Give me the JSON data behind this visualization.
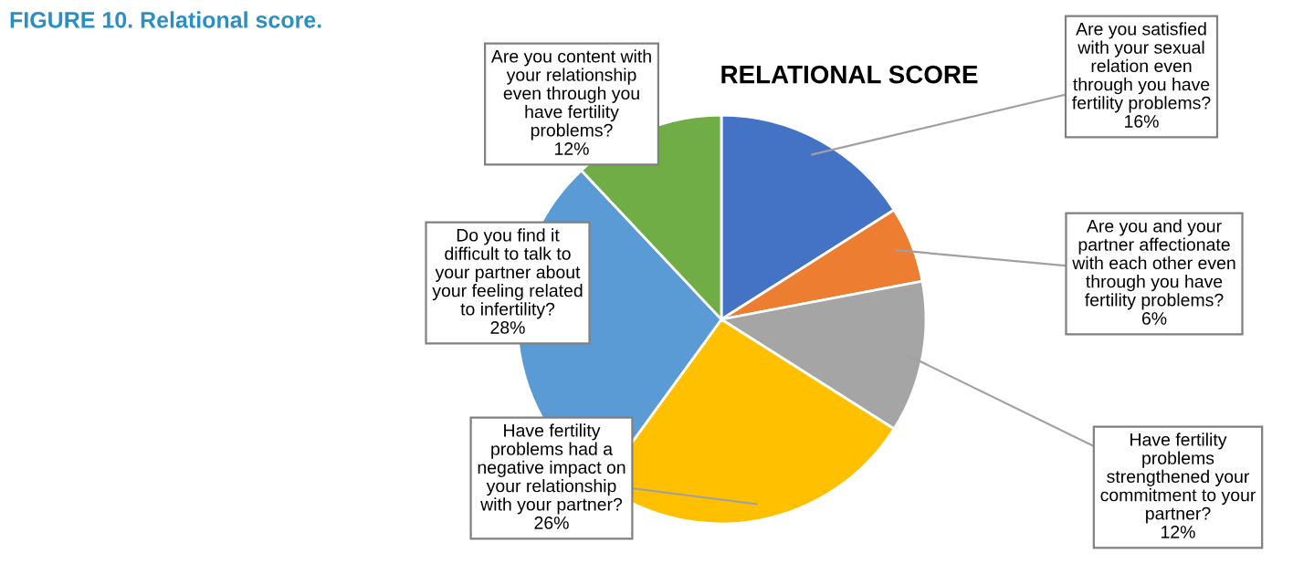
{
  "chart_data": {
    "type": "pie",
    "title": "RELATIONAL SCORE",
    "annotations": [
      "FIGURE 10. Relational score."
    ],
    "categories": [
      "Are you satisfied\nwith your sexual\nrelation even\nthrough you have\nfertility problems?",
      "Are you and your\npartner affectionate\nwith each other even\nthrough you have\nfertility problems?",
      "Have fertility\nproblems\nstrengthened your\ncommitment to your\npartner?",
      "Have fertility\nproblems had a\nnegative impact on\nyour relationship\nwith your partner?",
      "Do you find it\ndifficult to talk to\nyour partner about\nyour feeling related\nto infertility?",
      "Are you content with\nyour relationship\neven through you\nhave fertility\nproblems?"
    ],
    "values": [
      16,
      6,
      12,
      26,
      28,
      12
    ],
    "value_labels": [
      "16%",
      "6%",
      "12%",
      "26%",
      "28%",
      "12%"
    ],
    "colors": [
      "#4472c4",
      "#ed7d31",
      "#a5a5a5",
      "#ffc000",
      "#5b9bd5",
      "#70ad47"
    ]
  }
}
